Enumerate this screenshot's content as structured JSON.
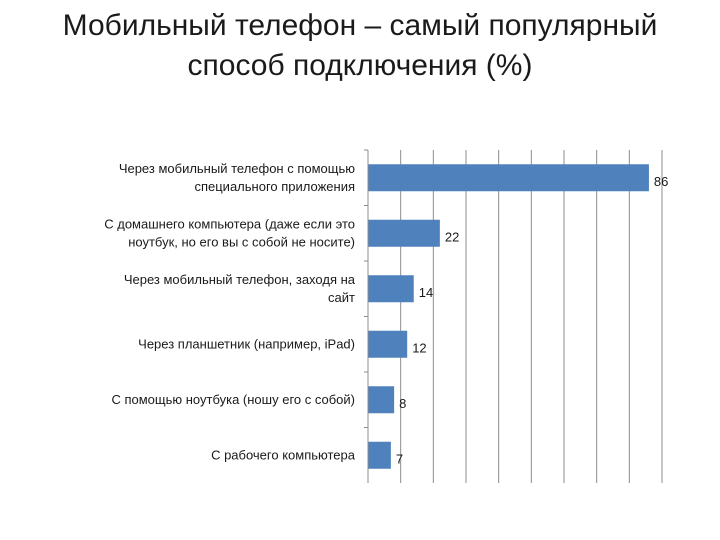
{
  "title": {
    "line1": "Мобильный телефон – самый популярный",
    "line2": "способ подключения (%)"
  },
  "chart_data": {
    "type": "bar",
    "orientation": "horizontal",
    "categories": [
      [
        "Через мобильный телефон с помощью",
        "специального приложения"
      ],
      [
        "С домашнего компьютера (даже если это",
        "ноутбук, но его вы с собой не носите)"
      ],
      [
        "Через мобильный телефон, заходя на",
        "сайт"
      ],
      [
        "Через планшетник (например, iPad)"
      ],
      [
        "С помощью ноутбука (ношу его с собой)"
      ],
      [
        "С рабочего компьютера"
      ]
    ],
    "values": [
      86,
      22,
      14,
      12,
      8,
      7
    ],
    "xlim": [
      0,
      90
    ],
    "grid": true,
    "legend": "none",
    "colors": {
      "bar": "#4f81bd",
      "grid": "#8c8c8c",
      "axis": "#8c8c8c"
    }
  }
}
